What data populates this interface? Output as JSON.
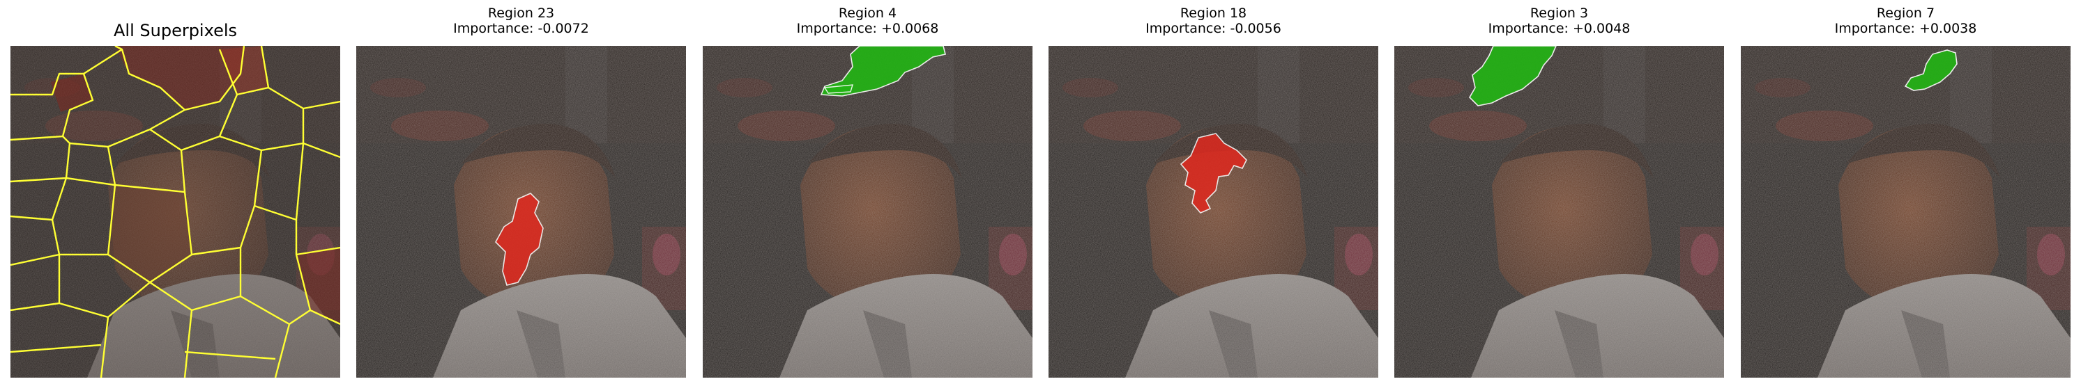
{
  "figure": {
    "panels": [
      {
        "id": "all",
        "title": "All Superpixels",
        "kind": "segmentation",
        "outline_color": "#ffff33"
      },
      {
        "id": "r23",
        "title": "Region 23",
        "importance": "Importance: -0.0072",
        "region_color": "#e0281e",
        "kind": "region"
      },
      {
        "id": "r4",
        "title": "Region 4",
        "importance": "Importance: +0.0068",
        "region_color": "#22b514",
        "kind": "region"
      },
      {
        "id": "r18",
        "title": "Region 18",
        "importance": "Importance: -0.0056",
        "region_color": "#e0281e",
        "kind": "region"
      },
      {
        "id": "r3",
        "title": "Region 3",
        "importance": "Importance: +0.0048",
        "region_color": "#22b514",
        "kind": "region"
      },
      {
        "id": "r7",
        "title": "Region 7",
        "importance": "Importance: +0.0038",
        "region_color": "#22b514",
        "kind": "region"
      }
    ]
  }
}
